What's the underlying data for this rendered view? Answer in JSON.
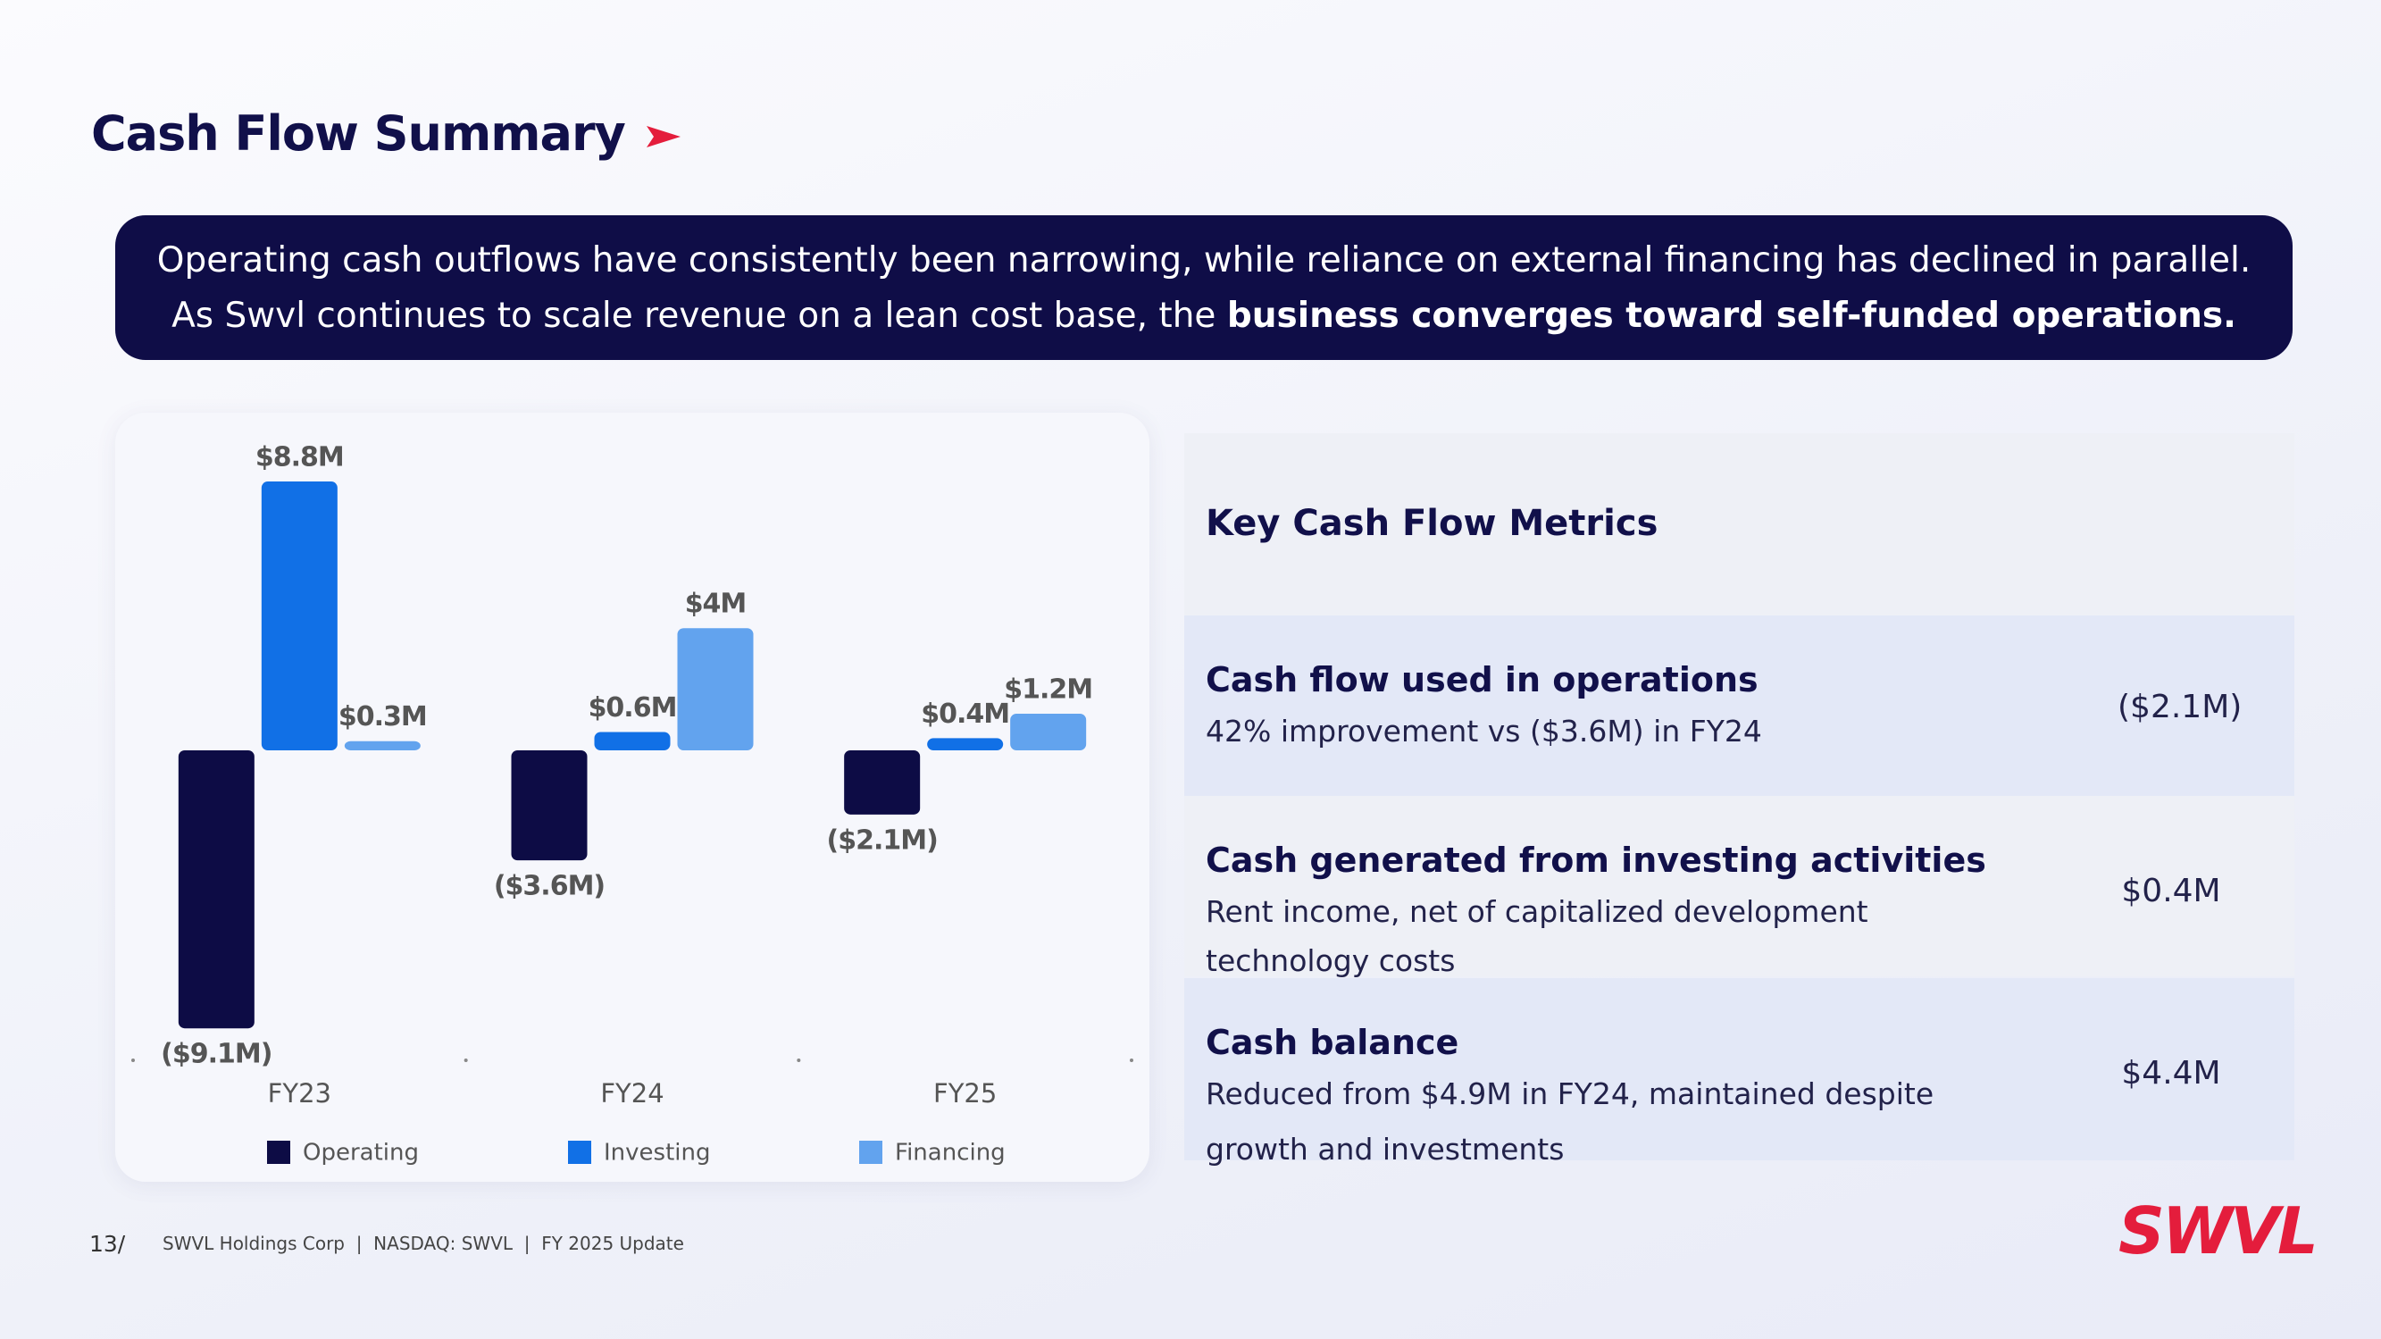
{
  "title": "Cash Flow Summary",
  "banner": {
    "line1": "Operating cash outflows have consistently been narrowing, while reliance on external financing has declined in parallel.",
    "line2": "As Swvl continues to scale revenue on a lean cost base, the",
    "line2_bold": "business converges toward self-funded operations."
  },
  "chart_data": {
    "type": "bar",
    "categories": [
      "FY23",
      "FY24",
      "FY25"
    ],
    "series": [
      {
        "name": "Operating",
        "color": "#0d0c45",
        "values": [
          -9.1,
          -3.6,
          -2.1
        ],
        "value_labels": [
          "($9.1M)",
          "($3.6M)",
          "($2.1M)"
        ]
      },
      {
        "name": "Investing",
        "color": "#1170e6",
        "values": [
          8.8,
          0.6,
          0.4
        ],
        "value_labels": [
          "$8.8M",
          "$0.6M",
          "$0.4M"
        ]
      },
      {
        "name": "Financing",
        "color": "#62a3ee",
        "values": [
          0.3,
          4,
          1.2
        ],
        "value_labels": [
          "$0.3M",
          "$4M",
          "$1.2M"
        ]
      }
    ],
    "ylim": [
      -10,
      10
    ],
    "grid": false,
    "legend": "bottom"
  },
  "metrics": {
    "header": "Key Cash Flow Metrics",
    "rows": [
      {
        "title": "Cash flow used in operations",
        "desc": [
          "42% improvement vs ($3.6M) in FY24"
        ],
        "value": "($2.1M)"
      },
      {
        "title": "Cash generated from investing activities",
        "desc": [
          "Rent income, net of capitalized development",
          "technology costs"
        ],
        "value": "$0.4M"
      },
      {
        "title": "Cash balance",
        "desc": [
          "Reduced from $4.9M in FY24, maintained despite",
          "growth and investments"
        ],
        "value": "$4.4M"
      }
    ]
  },
  "footer": {
    "page": "13/",
    "text": "SWVL Holdings Corp  |  NASDAQ: SWVL  |  FY 2025 Update"
  },
  "logo": "SWVL"
}
